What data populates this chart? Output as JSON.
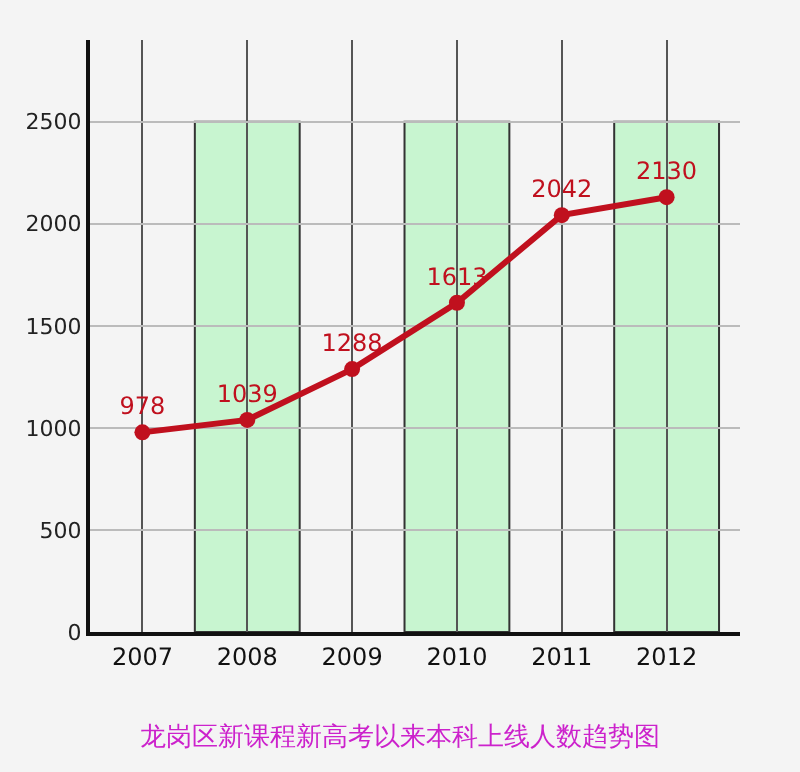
{
  "chart_data": {
    "type": "line",
    "title": "龙岗区新课程新高考以来本科上线人数趋势图",
    "categories": [
      "2007",
      "2008",
      "2009",
      "2010",
      "2011",
      "2012"
    ],
    "series": [
      {
        "color": "#c0101e",
        "values": [
          978,
          1039,
          1288,
          1613,
          2042,
          2130
        ]
      }
    ],
    "data_labels": true,
    "marker": "circle",
    "line_style": "solid",
    "grid": true,
    "ylim": [
      0,
      2900
    ],
    "yticks": [
      0,
      500,
      1000,
      1500,
      2000,
      2500
    ],
    "bands": [
      {
        "axis": "x",
        "from": "2008",
        "to": "2008",
        "color": "#c8f5d0"
      },
      {
        "axis": "x",
        "from": "2010",
        "to": "2010",
        "color": "#c8f5d0"
      },
      {
        "axis": "x",
        "from": "2012",
        "to": "2012",
        "color": "#c8f5d0"
      }
    ]
  }
}
